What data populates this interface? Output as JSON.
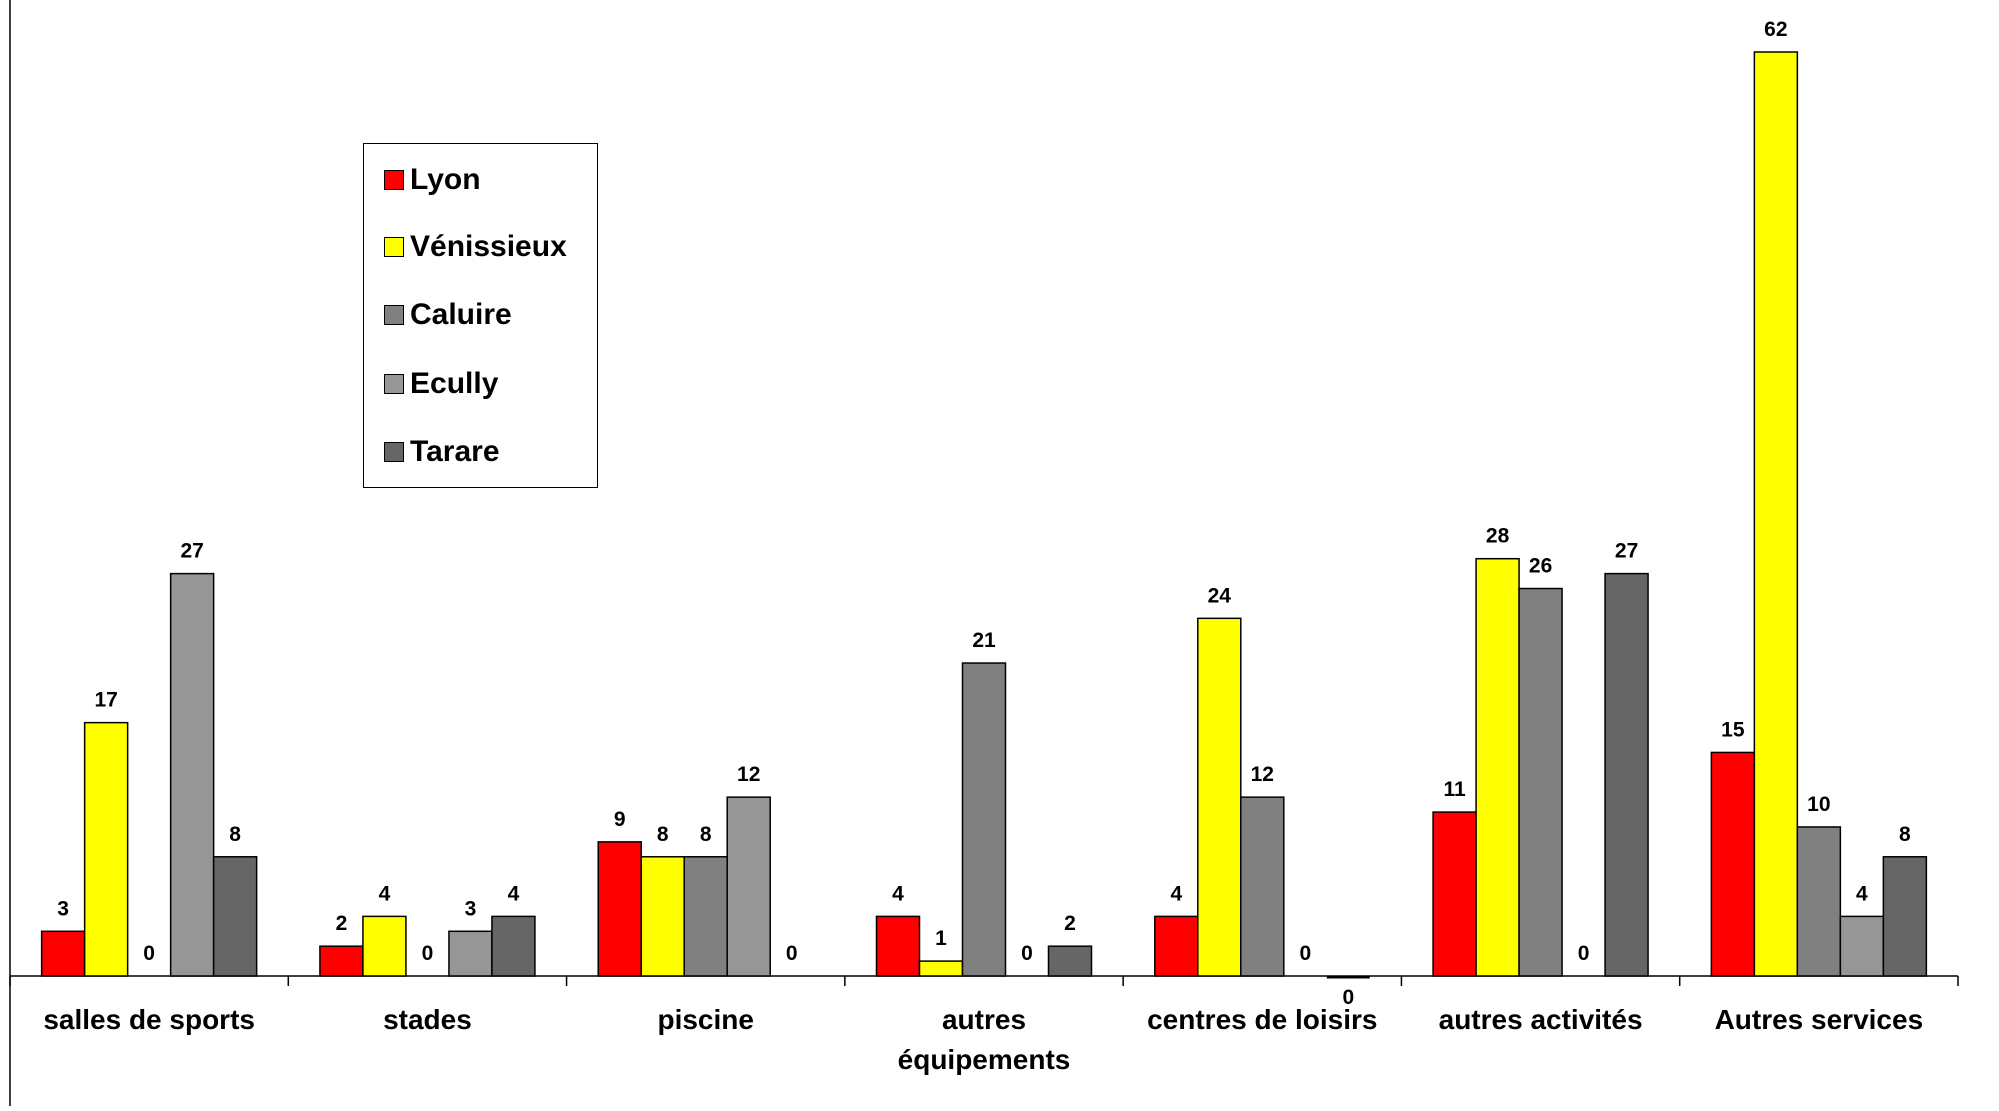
{
  "chart_data": {
    "type": "bar",
    "title": "",
    "xlabel": "",
    "ylabel": "",
    "ylim": [
      0,
      64
    ],
    "grid": false,
    "legend_position": "upper-left",
    "categories": [
      [
        "salles de sports"
      ],
      [
        "stades"
      ],
      [
        "piscine"
      ],
      [
        "autres",
        "équipements"
      ],
      [
        "centres de loisirs"
      ],
      [
        "autres activités"
      ],
      [
        "Autres services"
      ]
    ],
    "series": [
      {
        "name": "Lyon",
        "color": "#ff0000",
        "values": [
          3,
          2,
          9,
          4,
          4,
          11,
          15
        ]
      },
      {
        "name": "Vénissieux",
        "color": "#ffff00",
        "values": [
          17,
          4,
          8,
          1,
          24,
          28,
          62
        ]
      },
      {
        "name": "Caluire",
        "color": "#808080",
        "values": [
          0,
          0,
          8,
          21,
          12,
          26,
          10
        ]
      },
      {
        "name": "Ecully",
        "color": "#969696",
        "values": [
          27,
          3,
          12,
          0,
          0,
          0,
          4
        ]
      },
      {
        "name": "Tarare",
        "color": "#666666",
        "values": [
          8,
          4,
          0,
          2,
          0,
          27,
          8
        ]
      }
    ]
  }
}
